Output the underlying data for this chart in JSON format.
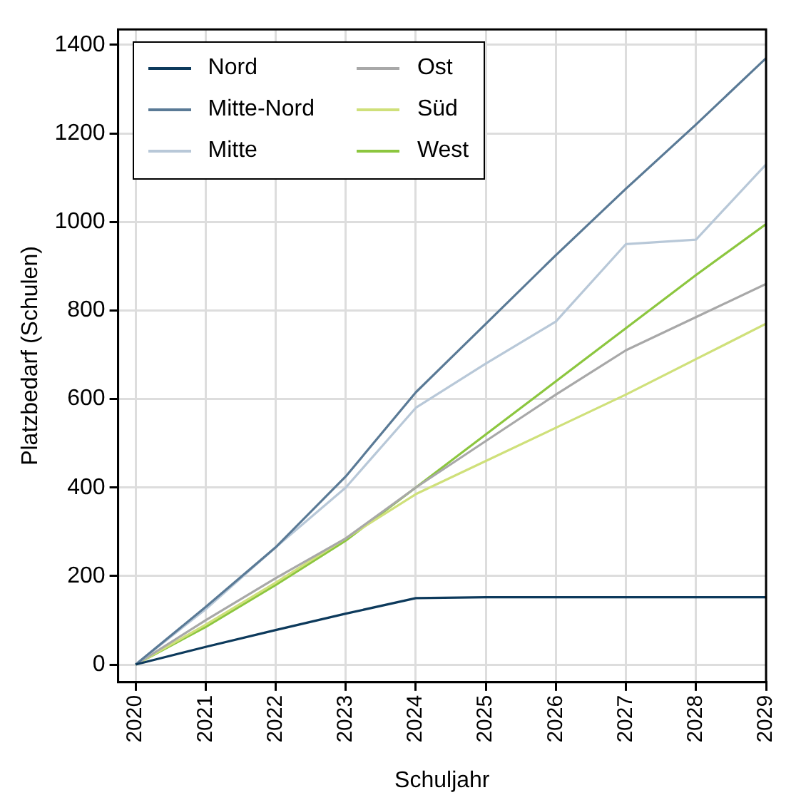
{
  "chart_data": {
    "type": "line",
    "xlabel": "Schuljahr",
    "ylabel": "Platzbedarf (Schulen)",
    "x": [
      2020,
      2021,
      2022,
      2023,
      2024,
      2025,
      2026,
      2027,
      2028,
      2029
    ],
    "series": [
      {
        "name": "Nord",
        "color": "#0d3a5c",
        "values": [
          0,
          40,
          78,
          115,
          150,
          152,
          152,
          152,
          152,
          152
        ]
      },
      {
        "name": "Mitte-Nord",
        "color": "#5a7a96",
        "values": [
          0,
          130,
          265,
          425,
          615,
          770,
          925,
          1075,
          1220,
          1370
        ]
      },
      {
        "name": "Mitte",
        "color": "#b8c8d8",
        "values": [
          0,
          125,
          265,
          400,
          580,
          680,
          775,
          950,
          960,
          1130
        ]
      },
      {
        "name": "Ost",
        "color": "#a8a8a8",
        "values": [
          0,
          100,
          195,
          285,
          400,
          505,
          610,
          710,
          785,
          860
        ]
      },
      {
        "name": "Süd",
        "color": "#cfe07a",
        "values": [
          0,
          90,
          185,
          285,
          385,
          460,
          535,
          610,
          690,
          770
        ]
      },
      {
        "name": "West",
        "color": "#8cc63f",
        "values": [
          0,
          85,
          180,
          280,
          400,
          520,
          640,
          760,
          880,
          995
        ]
      }
    ],
    "xlim": [
      2019.75,
      2029
    ],
    "xticks": [
      2020,
      2021,
      2022,
      2023,
      2024,
      2025,
      2026,
      2027,
      2028,
      2029
    ],
    "ylim": [
      -40,
      1435
    ],
    "yticks": [
      0,
      200,
      400,
      600,
      800,
      1000,
      1200,
      1400
    ],
    "grid": true,
    "legend": "top left",
    "marker": "none",
    "line_style": "solid"
  }
}
